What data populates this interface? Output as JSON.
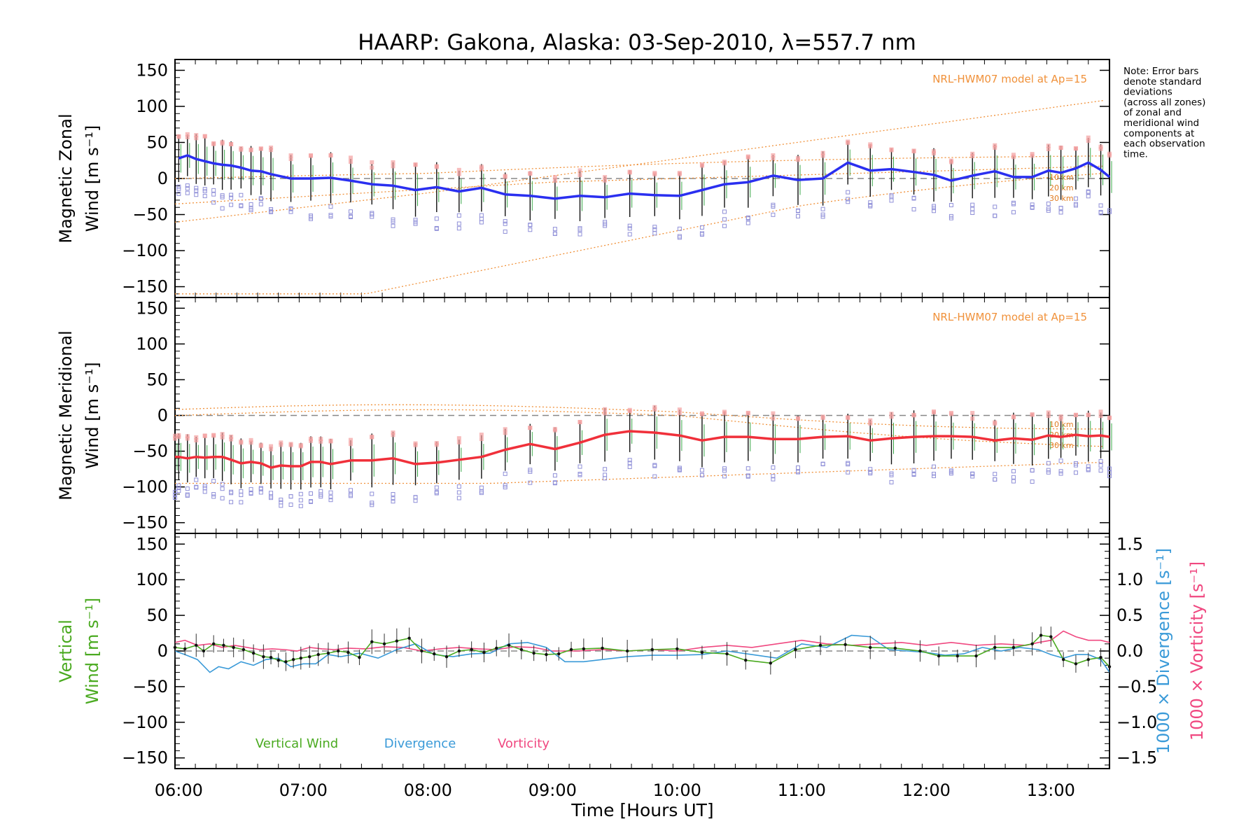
{
  "title": "HAARP: Gakona,  Alaska: 03-Sep-2010, λ=557.7 nm",
  "note": [
    "Note: Error bars",
    "denote standard",
    "deviations",
    "(across all zones)",
    "of zonal and",
    "meridional wind",
    "components at",
    "each observation",
    "time."
  ],
  "xlabel": "Time [Hours UT]",
  "xticks": [
    "06:00",
    "07:00",
    "08:00",
    "09:00",
    "10:00",
    "11:00",
    "12:00",
    "13:00"
  ],
  "yticks_left": [
    "150",
    "100",
    "50",
    "0",
    "−50",
    "−100",
    "−150"
  ],
  "yticks_right": [
    "1.5",
    "1.0",
    "0.5",
    "0.0",
    "−0.5",
    "−1.0",
    "−1.5"
  ],
  "model_label": "NRL-HWM07 model at Ap=15",
  "alt_labels": [
    "10 km",
    "20 km",
    "30 km"
  ],
  "colors": {
    "zonal": "#2a2ff0",
    "meridional": "#f0303a",
    "vertical": "#4aaa20",
    "divergence": "#3a9ad8",
    "vorticity": "#f04880",
    "model": "#f0913a",
    "zone_low": "#9090d8",
    "zone_high": "#f4a0a0"
  },
  "chart_data": [
    {
      "type": "line",
      "panel": "zonal",
      "ylabel_lines": [
        "Magnetic Zonal",
        "Wind [m s⁻¹]"
      ],
      "ylim": [
        -165,
        165
      ],
      "xlim": [
        5.97,
        13.47
      ],
      "grid": false,
      "x": [
        6.0,
        6.07,
        6.14,
        6.21,
        6.28,
        6.35,
        6.42,
        6.5,
        6.58,
        6.66,
        6.74,
        6.9,
        7.06,
        7.22,
        7.38,
        7.55,
        7.72,
        7.9,
        8.07,
        8.25,
        8.43,
        8.62,
        8.82,
        9.02,
        9.22,
        9.42,
        9.62,
        9.82,
        10.02,
        10.2,
        10.38,
        10.57,
        10.77,
        10.97,
        11.17,
        11.37,
        11.55,
        11.72,
        11.9,
        12.06,
        12.2,
        12.37,
        12.55,
        12.7,
        12.85,
        12.98,
        13.08,
        13.2,
        13.3,
        13.4,
        13.47
      ],
      "y": [
        28,
        32,
        27,
        24,
        21,
        19,
        18,
        15,
        11,
        10,
        6,
        0,
        0,
        1,
        -3,
        -8,
        -10,
        -16,
        -12,
        -18,
        -13,
        -22,
        -24,
        -28,
        -24,
        -26,
        -21,
        -23,
        -24,
        -16,
        -8,
        -5,
        4,
        -2,
        0,
        22,
        11,
        13,
        9,
        5,
        -3,
        4,
        10,
        2,
        2,
        11,
        8,
        14,
        22,
        12,
        2
      ]
    },
    {
      "type": "line",
      "panel": "meridional",
      "ylabel_lines": [
        "Magnetic Meridional",
        "Wind [m s⁻¹]"
      ],
      "ylim": [
        -165,
        165
      ],
      "xlim": [
        5.97,
        13.47
      ],
      "grid": false,
      "x": [
        5.97,
        6.0,
        6.07,
        6.14,
        6.21,
        6.28,
        6.35,
        6.42,
        6.5,
        6.58,
        6.66,
        6.74,
        6.82,
        6.9,
        6.98,
        7.06,
        7.14,
        7.22,
        7.38,
        7.55,
        7.72,
        7.9,
        8.07,
        8.25,
        8.43,
        8.62,
        8.82,
        9.02,
        9.22,
        9.42,
        9.62,
        9.82,
        10.02,
        10.2,
        10.38,
        10.57,
        10.77,
        10.97,
        11.17,
        11.37,
        11.55,
        11.72,
        11.9,
        12.06,
        12.2,
        12.37,
        12.55,
        12.7,
        12.85,
        12.98,
        13.08,
        13.2,
        13.3,
        13.4,
        13.47
      ],
      "y": [
        -58,
        -58,
        -60,
        -58,
        -59,
        -58,
        -58,
        -62,
        -67,
        -65,
        -67,
        -73,
        -70,
        -71,
        -71,
        -65,
        -65,
        -68,
        -63,
        -63,
        -60,
        -68,
        -66,
        -62,
        -58,
        -48,
        -40,
        -47,
        -38,
        -27,
        -22,
        -24,
        -28,
        -35,
        -30,
        -30,
        -33,
        -33,
        -30,
        -29,
        -35,
        -32,
        -30,
        -29,
        -29,
        -30,
        -35,
        -32,
        -34,
        -28,
        -30,
        -27,
        -29,
        -28,
        -30
      ]
    },
    {
      "type": "line",
      "panel": "vertical",
      "ylabel_lines": [
        "Vertical",
        "Wind [m s⁻¹]"
      ],
      "right_ylabel_div": "1000 × Divergence [s⁻¹]",
      "right_ylabel_vort": "1000 × Vorticity [s⁻¹]",
      "ylim": [
        -165,
        165
      ],
      "right_ylim": [
        -1.65,
        1.65
      ],
      "xlim": [
        5.97,
        13.47
      ],
      "grid": false,
      "legend": [
        "Vertical Wind",
        "Divergence",
        "Vorticity"
      ],
      "series": [
        {
          "name": "Vertical Wind",
          "x": [
            5.97,
            6.05,
            6.14,
            6.2,
            6.28,
            6.36,
            6.44,
            6.52,
            6.6,
            6.68,
            6.74,
            6.8,
            6.86,
            6.92,
            6.98,
            7.05,
            7.12,
            7.2,
            7.28,
            7.36,
            7.45,
            7.55,
            7.65,
            7.75,
            7.85,
            7.95,
            8.05,
            8.15,
            8.25,
            8.35,
            8.45,
            8.55,
            8.65,
            8.75,
            8.85,
            8.95,
            9.05,
            9.15,
            9.25,
            9.4,
            9.6,
            9.8,
            10.0,
            10.2,
            10.4,
            10.55,
            10.75,
            10.95,
            11.15,
            11.35,
            11.55,
            11.75,
            11.95,
            12.1,
            12.25,
            12.4,
            12.55,
            12.7,
            12.85,
            12.92,
            13.0,
            13.1,
            13.2,
            13.3,
            13.4,
            13.47
          ],
          "y": [
            5,
            3,
            8,
            0,
            10,
            8,
            5,
            2,
            -3,
            -8,
            -9,
            -13,
            -15,
            -12,
            -10,
            -8,
            -5,
            -3,
            0,
            -2,
            -9,
            13,
            10,
            14,
            18,
            0,
            -4,
            -8,
            0,
            2,
            -2,
            4,
            8,
            2,
            -3,
            -5,
            -4,
            2,
            3,
            4,
            0,
            2,
            3,
            -2,
            -4,
            -13,
            -17,
            2,
            8,
            9,
            5,
            4,
            0,
            -7,
            -7,
            -7,
            5,
            5,
            10,
            22,
            20,
            -12,
            -18,
            -12,
            -9,
            -22
          ]
        },
        {
          "name": "Divergence",
          "x": [
            5.97,
            6.05,
            6.15,
            6.25,
            6.32,
            6.4,
            6.5,
            6.6,
            6.7,
            6.8,
            6.9,
            7.0,
            7.1,
            7.2,
            7.3,
            7.45,
            7.6,
            7.75,
            7.9,
            8.05,
            8.2,
            8.35,
            8.5,
            8.65,
            8.8,
            8.95,
            9.1,
            9.25,
            9.4,
            9.6,
            9.8,
            10.0,
            10.2,
            10.4,
            10.6,
            10.8,
            11.0,
            11.2,
            11.4,
            11.55,
            11.7,
            11.85,
            12.0,
            12.15,
            12.3,
            12.45,
            12.6,
            12.75,
            12.9,
            13.0,
            13.1,
            13.2,
            13.3,
            13.4,
            13.47
          ],
          "y": [
            0.0,
            -0.05,
            -0.12,
            -0.3,
            -0.22,
            -0.25,
            -0.15,
            -0.2,
            -0.12,
            -0.1,
            -0.22,
            -0.18,
            -0.18,
            -0.05,
            -0.08,
            -0.03,
            -0.1,
            0.02,
            0.1,
            -0.05,
            -0.08,
            -0.04,
            -0.03,
            0.1,
            0.12,
            0.05,
            -0.15,
            -0.15,
            -0.12,
            -0.08,
            -0.06,
            -0.06,
            -0.05,
            0.0,
            -0.05,
            -0.1,
            0.1,
            0.05,
            0.22,
            0.2,
            0.02,
            0.0,
            -0.02,
            -0.06,
            -0.04,
            0.05,
            0.0,
            0.05,
            0.02,
            -0.05,
            -0.1,
            -0.05,
            -0.05,
            -0.12,
            -0.3
          ]
        },
        {
          "name": "Vorticity",
          "x": [
            5.97,
            6.05,
            6.15,
            6.25,
            6.35,
            6.45,
            6.55,
            6.65,
            6.75,
            6.85,
            6.95,
            7.05,
            7.15,
            7.25,
            7.35,
            7.5,
            7.65,
            7.8,
            7.95,
            8.1,
            8.25,
            8.4,
            8.55,
            8.7,
            8.85,
            9.0,
            9.2,
            9.4,
            9.6,
            9.8,
            10.0,
            10.2,
            10.4,
            10.6,
            10.8,
            11.0,
            11.2,
            11.4,
            11.6,
            11.8,
            12.0,
            12.2,
            12.4,
            12.6,
            12.8,
            12.9,
            13.0,
            13.1,
            13.2,
            13.3,
            13.4,
            13.47
          ],
          "y": [
            0.12,
            0.15,
            0.08,
            0.1,
            0.05,
            0.08,
            0.05,
            0.02,
            0.03,
            0.02,
            0.0,
            0.05,
            0.03,
            0.02,
            0.04,
            0.03,
            0.06,
            0.05,
            0.0,
            0.03,
            0.05,
            0.03,
            0.02,
            0.06,
            0.05,
            0.0,
            0.0,
            0.02,
            0.0,
            0.02,
            0.0,
            0.05,
            0.08,
            0.05,
            0.1,
            0.15,
            0.1,
            0.08,
            0.1,
            0.12,
            0.08,
            0.12,
            0.08,
            0.1,
            0.08,
            0.12,
            0.15,
            0.28,
            0.2,
            0.15,
            0.15,
            0.12
          ]
        }
      ]
    }
  ]
}
